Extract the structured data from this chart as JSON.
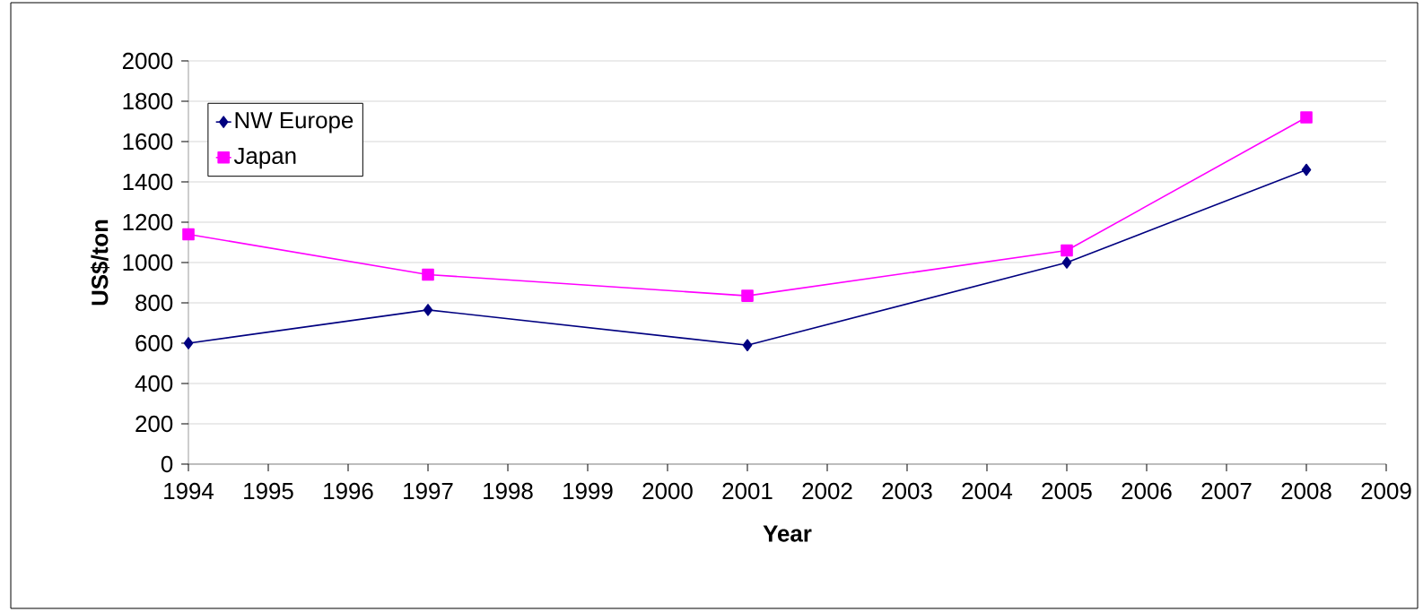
{
  "chart_data": {
    "type": "line",
    "xlabel": "Year",
    "ylabel": "US$/ton",
    "x": [
      1994,
      1997,
      2001,
      2005,
      2008
    ],
    "series": [
      {
        "name": "NW Europe",
        "color": "#000080",
        "marker": "diamond",
        "values": [
          600,
          765,
          590,
          1000,
          1460
        ]
      },
      {
        "name": "Japan",
        "color": "#ff00ff",
        "marker": "square",
        "values": [
          1140,
          940,
          835,
          1060,
          1720
        ]
      }
    ],
    "xlim": [
      1994,
      2009
    ],
    "xticks": [
      1994,
      1995,
      1996,
      1997,
      1998,
      1999,
      2000,
      2001,
      2002,
      2003,
      2004,
      2005,
      2006,
      2007,
      2008,
      2009
    ],
    "ylim": [
      0,
      2000
    ],
    "yticks": [
      0,
      200,
      400,
      600,
      800,
      1000,
      1200,
      1400,
      1600,
      1800,
      2000
    ],
    "grid": "y",
    "legend": "top left"
  }
}
